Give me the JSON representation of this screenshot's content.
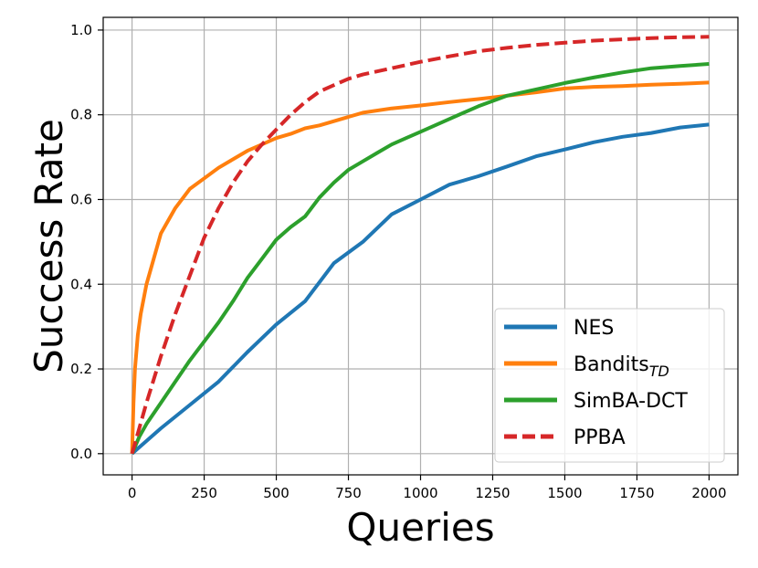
{
  "chart_data": {
    "type": "line",
    "title": "",
    "xlabel": "Queries",
    "ylabel": "Success Rate",
    "xlim": [
      -100,
      2100
    ],
    "ylim": [
      -0.05,
      1.03
    ],
    "x_ticks": [
      0,
      250,
      500,
      750,
      1000,
      1250,
      1500,
      1750,
      2000
    ],
    "y_ticks": [
      0.0,
      0.2,
      0.4,
      0.6,
      0.8,
      1.0
    ],
    "x_tick_labels": [
      "0",
      "250",
      "500",
      "750",
      "1000",
      "1250",
      "1500",
      "1750",
      "2000"
    ],
    "y_tick_labels": [
      "0.0",
      "0.2",
      "0.4",
      "0.6",
      "0.8",
      "1.0"
    ],
    "grid": true,
    "legend_position": "lower-right",
    "series": [
      {
        "name": "NES",
        "label_main": "NES",
        "label_sub": "",
        "color": "#1f77b4",
        "dash": "solid",
        "x": [
          0,
          100,
          200,
          300,
          400,
          500,
          600,
          700,
          800,
          900,
          1000,
          1100,
          1200,
          1300,
          1400,
          1500,
          1600,
          1700,
          1800,
          1900,
          2000
        ],
        "y": [
          0.0,
          0.06,
          0.115,
          0.17,
          0.24,
          0.305,
          0.36,
          0.45,
          0.5,
          0.565,
          0.6,
          0.635,
          0.655,
          0.678,
          0.702,
          0.718,
          0.735,
          0.748,
          0.757,
          0.77,
          0.777
        ]
      },
      {
        "name": "BanditsTD",
        "label_main": "Bandits",
        "label_sub": "TD",
        "color": "#ff7f0e",
        "dash": "solid",
        "x": [
          0,
          5,
          10,
          20,
          30,
          50,
          75,
          100,
          150,
          200,
          250,
          300,
          350,
          400,
          450,
          500,
          550,
          600,
          650,
          700,
          750,
          800,
          900,
          1000,
          1100,
          1200,
          1300,
          1400,
          1500,
          1600,
          1700,
          1800,
          1900,
          2000
        ],
        "y": [
          0.0,
          0.12,
          0.2,
          0.28,
          0.33,
          0.4,
          0.46,
          0.52,
          0.58,
          0.625,
          0.65,
          0.675,
          0.695,
          0.715,
          0.73,
          0.745,
          0.755,
          0.768,
          0.775,
          0.785,
          0.795,
          0.805,
          0.815,
          0.822,
          0.83,
          0.837,
          0.845,
          0.853,
          0.862,
          0.866,
          0.868,
          0.871,
          0.873,
          0.876
        ]
      },
      {
        "name": "SimBA-DCT",
        "label_main": "SimBA-DCT",
        "label_sub": "",
        "color": "#2ca02c",
        "dash": "solid",
        "x": [
          0,
          25,
          50,
          100,
          150,
          200,
          250,
          300,
          350,
          400,
          450,
          500,
          550,
          600,
          650,
          700,
          750,
          800,
          850,
          900,
          950,
          1000,
          1100,
          1200,
          1300,
          1400,
          1500,
          1600,
          1700,
          1800,
          1900,
          2000
        ],
        "y": [
          0.0,
          0.04,
          0.07,
          0.12,
          0.17,
          0.22,
          0.265,
          0.31,
          0.36,
          0.415,
          0.46,
          0.505,
          0.535,
          0.56,
          0.605,
          0.64,
          0.67,
          0.69,
          0.71,
          0.73,
          0.745,
          0.76,
          0.79,
          0.82,
          0.845,
          0.86,
          0.875,
          0.888,
          0.9,
          0.91,
          0.915,
          0.92
        ]
      },
      {
        "name": "PPBA",
        "label_main": "PPBA",
        "label_sub": "",
        "color": "#d62728",
        "dash": "dashed",
        "x": [
          0,
          25,
          50,
          100,
          150,
          200,
          250,
          300,
          350,
          400,
          450,
          500,
          550,
          600,
          650,
          700,
          750,
          800,
          900,
          1000,
          1100,
          1200,
          1300,
          1400,
          1500,
          1600,
          1700,
          1800,
          1900,
          2000
        ],
        "y": [
          0.0,
          0.06,
          0.12,
          0.23,
          0.33,
          0.42,
          0.51,
          0.58,
          0.64,
          0.69,
          0.73,
          0.765,
          0.8,
          0.83,
          0.855,
          0.87,
          0.885,
          0.895,
          0.91,
          0.925,
          0.938,
          0.95,
          0.958,
          0.965,
          0.97,
          0.975,
          0.978,
          0.981,
          0.983,
          0.984
        ]
      }
    ]
  }
}
